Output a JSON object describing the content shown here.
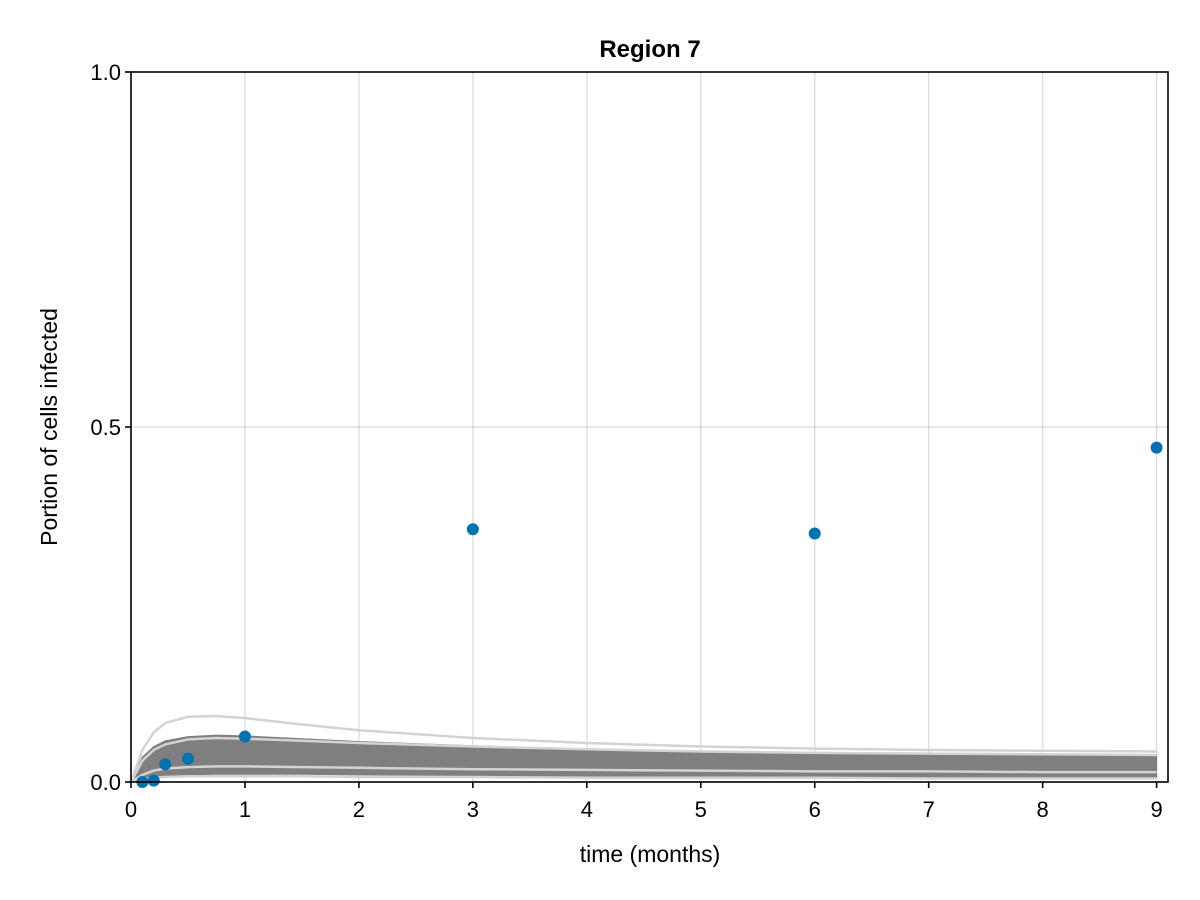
{
  "chart_data": {
    "type": "scatter",
    "title": "Region 7",
    "xlabel": "time (months)",
    "ylabel": "Portion of cells infected",
    "xlim": [
      0,
      9.1
    ],
    "ylim": [
      0,
      1
    ],
    "xticks": [
      0,
      1,
      2,
      3,
      4,
      5,
      6,
      7,
      8,
      9
    ],
    "xtick_labels": [
      "0",
      "1",
      "2",
      "3",
      "4",
      "5",
      "6",
      "7",
      "8",
      "9"
    ],
    "yticks": [
      0,
      0.5,
      1
    ],
    "ytick_labels": [
      "0.0",
      "0.5",
      "1.0"
    ],
    "grid": true,
    "colors": {
      "points": "#0072b2",
      "ensemble": "#7f7f7f",
      "outliers": "#d3d3d3"
    },
    "observed": {
      "x": [
        0.1,
        0.2,
        0.3,
        0.5,
        1,
        3,
        6,
        9
      ],
      "y": [
        0.0,
        0.002,
        0.025,
        0.033,
        0.064,
        0.356,
        0.35,
        0.471
      ]
    },
    "model_band": {
      "x": [
        0,
        0.1,
        0.2,
        0.3,
        0.5,
        0.75,
        1,
        1.5,
        2,
        3,
        4,
        5,
        6,
        7,
        8,
        9
      ],
      "upper": [
        0,
        0.035,
        0.05,
        0.058,
        0.064,
        0.066,
        0.065,
        0.061,
        0.057,
        0.051,
        0.046,
        0.043,
        0.041,
        0.039,
        0.038,
        0.037
      ],
      "lower": [
        0,
        0.003,
        0.006,
        0.008,
        0.01,
        0.011,
        0.011,
        0.011,
        0.01,
        0.009,
        0.008,
        0.008,
        0.007,
        0.007,
        0.007,
        0.007
      ]
    },
    "outlier_curves": [
      {
        "x": [
          0,
          0.1,
          0.2,
          0.3,
          0.5,
          0.75,
          1,
          1.5,
          2,
          3,
          4,
          5,
          6,
          7,
          8,
          9
        ],
        "y": [
          0,
          0.045,
          0.07,
          0.083,
          0.092,
          0.093,
          0.09,
          0.081,
          0.073,
          0.062,
          0.055,
          0.05,
          0.047,
          0.045,
          0.044,
          0.043
        ]
      },
      {
        "x": [
          0,
          0.1,
          0.2,
          0.3,
          0.5,
          0.75,
          1,
          1.5,
          2,
          3,
          4,
          5,
          6,
          7,
          8,
          9
        ],
        "y": [
          0,
          0.03,
          0.045,
          0.053,
          0.06,
          0.062,
          0.061,
          0.058,
          0.055,
          0.05,
          0.046,
          0.043,
          0.041,
          0.04,
          0.039,
          0.038
        ]
      },
      {
        "x": [
          0,
          0.1,
          0.2,
          0.3,
          0.5,
          0.75,
          1,
          1.5,
          2,
          3,
          4,
          5,
          6,
          7,
          8,
          9
        ],
        "y": [
          0,
          0.01,
          0.016,
          0.019,
          0.021,
          0.022,
          0.022,
          0.021,
          0.02,
          0.018,
          0.017,
          0.016,
          0.015,
          0.015,
          0.014,
          0.014
        ]
      },
      {
        "x": [
          0,
          0.1,
          0.2,
          0.3,
          0.5,
          0.75,
          1,
          1.5,
          2,
          3,
          4,
          5,
          6,
          7,
          8,
          9
        ],
        "y": [
          0,
          0.004,
          0.006,
          0.007,
          0.008,
          0.008,
          0.008,
          0.008,
          0.007,
          0.007,
          0.006,
          0.006,
          0.006,
          0.005,
          0.005,
          0.005
        ]
      }
    ]
  }
}
